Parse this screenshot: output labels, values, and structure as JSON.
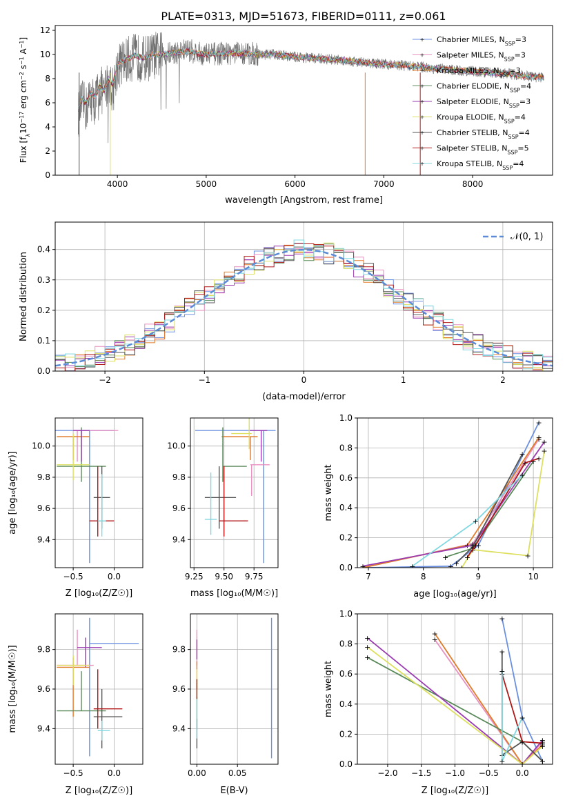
{
  "title": "PLATE=0313, MJD=51673, FIBERID=0111, z=0.061",
  "model_colors": [
    "#6a8fe0",
    "#e98fc0",
    "#e07b2a",
    "#5a8a5a",
    "#9a3ab0",
    "#dde060",
    "#555555",
    "#b01818",
    "#80d8e0"
  ],
  "model_names": [
    {
      "pre": "Chabrier MILES, N",
      "sub": "SSP",
      "post": "=3"
    },
    {
      "pre": "Salpeter MILES, N",
      "sub": "SSP",
      "post": "=3"
    },
    {
      "pre": "Kroupa MILES, N",
      "sub": "SSP",
      "post": "=3"
    },
    {
      "pre": "Chabrier ELODIE, N",
      "sub": "SSP",
      "post": "=4"
    },
    {
      "pre": "Salpeter ELODIE, N",
      "sub": "SSP",
      "post": "=3"
    },
    {
      "pre": "Kroupa ELODIE, N",
      "sub": "SSP",
      "post": "=4"
    },
    {
      "pre": "Chabrier STELIB, N",
      "sub": "SSP",
      "post": "=4"
    },
    {
      "pre": "Salpeter STELIB, N",
      "sub": "SSP",
      "post": "=5"
    },
    {
      "pre": "Kroupa STELIB, N",
      "sub": "SSP",
      "post": "=4"
    }
  ],
  "chart_data": [
    {
      "id": "spectrum",
      "type": "line",
      "xlabel": "wavelength [Angstrom, rest frame]",
      "ylabel_pre": "Flux [f",
      "ylabel_sub": "λ",
      "ylabel_mid": "10",
      "ylabel_sup1": "−17",
      "ylabel_post": " erg cm",
      "ylabel_sup2": "−2",
      "ylabel_mid2": " s",
      "ylabel_sup3": "−1",
      "ylabel_mid3": " A",
      "ylabel_sup4": "−1",
      "ylabel_end": "]",
      "xlim": [
        3300,
        8900
      ],
      "ylim": [
        0,
        12.4
      ],
      "xticks": [
        4000,
        5000,
        6000,
        7000,
        8000
      ],
      "yticks": [
        0,
        2,
        4,
        6,
        8,
        10,
        12
      ],
      "data_x": [
        3560,
        3600,
        3650,
        3700,
        3750,
        3800,
        3850,
        3900,
        3950,
        4000,
        4100,
        4200,
        4300,
        4400,
        4500,
        4600,
        4700,
        4800,
        4900,
        5000,
        5200,
        5400,
        5600,
        5800,
        6000,
        6200,
        6400,
        6600,
        6800,
        7000,
        7200,
        7400,
        7600,
        7800,
        8000,
        8200,
        8400,
        8600,
        8800
      ],
      "data_y": [
        5.0,
        6.0,
        5.5,
        6.5,
        6.0,
        7.5,
        6.5,
        8.0,
        7.0,
        9.0,
        9.5,
        9.8,
        9.6,
        9.9,
        10.0,
        10.1,
        10.2,
        10.4,
        10.1,
        10.0,
        10.1,
        10.1,
        10.0,
        10.0,
        9.8,
        9.7,
        9.6,
        9.5,
        9.3,
        9.2,
        9.1,
        9.0,
        8.8,
        8.7,
        8.6,
        8.5,
        8.4,
        8.2,
        8.1
      ],
      "model_y": [
        5.5,
        6.3,
        6.0,
        6.8,
        6.5,
        7.4,
        7.0,
        8.0,
        7.5,
        9.2,
        9.6,
        9.9,
        9.7,
        10.0,
        10.0,
        10.1,
        10.2,
        10.3,
        10.1,
        10.0,
        10.1,
        10.1,
        10.0,
        10.0,
        9.8,
        9.7,
        9.6,
        9.5,
        9.3,
        9.2,
        9.1,
        9.0,
        8.8,
        8.7,
        8.6,
        8.5,
        8.4,
        8.2,
        8.1
      ]
    },
    {
      "id": "residual-histogram",
      "type": "line",
      "xlabel": "(data-model)/error",
      "ylabel": "Normed distribution",
      "legend": "𝒩(0, 1)",
      "xlim": [
        -2.5,
        2.5
      ],
      "ylim": [
        0,
        0.49
      ],
      "xticks": [
        -2,
        -1,
        0,
        1,
        2
      ],
      "yticks": [
        0.0,
        0.1,
        0.2,
        0.3,
        0.4
      ],
      "bin_width": 0.1,
      "bin_start": -2.5
    },
    {
      "id": "age-vs-Z",
      "type": "scatter",
      "xlabel": "Z [log₁₀(Z/Z☉)]",
      "ylabel": "age  [log₁₀(age/yr)]",
      "xlim": [
        -0.72,
        0.35
      ],
      "ylim": [
        9.22,
        10.18
      ],
      "xticks": [
        -0.5,
        0.0
      ],
      "yticks": [
        9.4,
        9.6,
        9.8,
        10.0
      ],
      "points": [
        {
          "x": -0.3,
          "y": 10.1,
          "xerr": [
            0.6,
            0.3
          ],
          "yerr": [
            0.85,
            0.0
          ]
        },
        {
          "x": -0.45,
          "y": 10.1,
          "xerr": [
            0.05,
            0.5
          ],
          "yerr": [
            0.2,
            0.0
          ]
        },
        {
          "x": -0.5,
          "y": 10.06,
          "xerr": [
            0.2,
            0.2
          ],
          "yerr": [
            0.15,
            0.0
          ]
        },
        {
          "x": -0.4,
          "y": 9.87,
          "xerr": [
            0.3,
            0.3
          ],
          "yerr": [
            0.1,
            0.25
          ]
        },
        {
          "x": -0.4,
          "y": 10.1,
          "xerr": [
            0.1,
            0.1
          ],
          "yerr": [
            0.2,
            0.0
          ]
        },
        {
          "x": -0.5,
          "y": 9.88,
          "xerr": [
            0.2,
            0.2
          ],
          "yerr": [
            0.1,
            0.2
          ]
        },
        {
          "x": -0.15,
          "y": 9.67,
          "xerr": [
            0.1,
            0.1
          ],
          "yerr": [
            0.2,
            0.2
          ]
        },
        {
          "x": -0.2,
          "y": 9.52,
          "xerr": [
            0.1,
            0.2
          ],
          "yerr": [
            0.1,
            0.35
          ]
        },
        {
          "x": -0.15,
          "y": 9.52,
          "xerr": [
            0.05,
            0.05
          ],
          "yerr": [
            0.1,
            0.3
          ]
        }
      ]
    },
    {
      "id": "age-vs-mass",
      "type": "scatter",
      "xlabel": "mass [log₁₀(M/M☉)]",
      "xlim": [
        9.22,
        9.95
      ],
      "ylim": [
        9.22,
        10.18
      ],
      "xticks": [
        9.25,
        9.5,
        9.75
      ],
      "yticks": [
        9.4,
        9.6,
        9.8,
        10.0
      ],
      "points": [
        {
          "x": 9.83,
          "y": 10.1,
          "xerr": [
            0.57,
            0.1
          ],
          "yerr": [
            0.85,
            0.0
          ]
        },
        {
          "x": 9.73,
          "y": 9.88,
          "xerr": [
            0.01,
            0.15
          ],
          "yerr": [
            0.2,
            0.0
          ]
        },
        {
          "x": 9.72,
          "y": 10.06,
          "xerr": [
            0.24,
            0.06
          ],
          "yerr": [
            0.15,
            0.0
          ]
        },
        {
          "x": 9.49,
          "y": 9.87,
          "xerr": [
            0.0,
            0.2
          ],
          "yerr": [
            0.1,
            0.25
          ]
        },
        {
          "x": 9.81,
          "y": 10.1,
          "xerr": [
            0.1,
            0.05
          ],
          "yerr": [
            0.2,
            0.0
          ]
        },
        {
          "x": 9.71,
          "y": 10.08,
          "xerr": [
            0.15,
            0.02
          ],
          "yerr": [
            0.1,
            0.2
          ]
        },
        {
          "x": 9.46,
          "y": 9.67,
          "xerr": [
            0.12,
            0.14
          ],
          "yerr": [
            0.2,
            0.2
          ]
        },
        {
          "x": 9.5,
          "y": 9.52,
          "xerr": [
            0.04,
            0.2
          ],
          "yerr": [
            0.1,
            0.35
          ]
        },
        {
          "x": 9.39,
          "y": 9.53,
          "xerr": [
            0.05,
            0.05
          ],
          "yerr": [
            0.1,
            0.3
          ]
        }
      ]
    },
    {
      "id": "weight-vs-age",
      "type": "line",
      "xlabel": "age  [log₁₀(age/yr)]",
      "ylabel": "mass weight",
      "xlim": [
        6.8,
        10.35
      ],
      "ylim": [
        0,
        1.0
      ],
      "xticks": [
        7,
        8,
        9,
        10
      ],
      "yticks": [
        0.0,
        0.2,
        0.4,
        0.6,
        0.8,
        1.0
      ],
      "series": [
        {
          "x": [
            7.0,
            8.5,
            9.0,
            10.1
          ],
          "y": [
            0.0,
            0.01,
            0.15,
            0.97
          ]
        },
        {
          "x": [
            6.9,
            8.9,
            10.1
          ],
          "y": [
            0.0,
            0.16,
            0.86
          ]
        },
        {
          "x": [
            6.9,
            8.8,
            10.1
          ],
          "y": [
            0.0,
            0.15,
            0.87
          ]
        },
        {
          "x": [
            8.4,
            8.9,
            10.0
          ],
          "y": [
            0.07,
            0.13,
            0.71
          ]
        },
        {
          "x": [
            6.9,
            8.9,
            10.2
          ],
          "y": [
            0.01,
            0.15,
            0.84
          ]
        },
        {
          "x": [
            8.7,
            8.9,
            9.9,
            10.2
          ],
          "y": [
            0.0,
            0.12,
            0.08,
            0.78
          ]
        },
        {
          "x": [
            8.6,
            8.9,
            9.8
          ],
          "y": [
            0.03,
            0.14,
            0.76
          ]
        },
        {
          "x": [
            8.8,
            8.95,
            9.85,
            10.1
          ],
          "y": [
            0.07,
            0.15,
            0.7,
            0.73
          ]
        },
        {
          "x": [
            7.8,
            8.95,
            9.8
          ],
          "y": [
            0.01,
            0.31,
            0.62
          ]
        }
      ]
    },
    {
      "id": "mass-vs-Z",
      "type": "scatter",
      "xlabel": "Z [log₁₀(Z/Z☉)]",
      "ylabel": "mass [log₁₀(M/M☉)]",
      "xlim": [
        -0.72,
        0.35
      ],
      "ylim": [
        9.22,
        9.98
      ],
      "xticks": [
        -0.5,
        0.0
      ],
      "yticks": [
        9.4,
        9.6,
        9.8
      ],
      "points": [
        {
          "x": -0.3,
          "y": 9.83,
          "xerr": [
            0.0,
            0.6
          ],
          "yerr": [
            0.57,
            0.13
          ]
        },
        {
          "x": -0.45,
          "y": 9.72,
          "xerr": [
            0.25,
            0.2
          ],
          "yerr": [
            0.0,
            0.18
          ]
        },
        {
          "x": -0.5,
          "y": 9.71,
          "xerr": [
            0.2,
            0.2
          ],
          "yerr": [
            0.25,
            0.05
          ]
        },
        {
          "x": -0.4,
          "y": 9.49,
          "xerr": [
            0.3,
            0.3
          ],
          "yerr": [
            0.0,
            0.2
          ]
        },
        {
          "x": -0.35,
          "y": 9.81,
          "xerr": [
            0.1,
            0.2
          ],
          "yerr": [
            0.1,
            0.05
          ]
        },
        {
          "x": -0.5,
          "y": 9.72,
          "xerr": [
            0.2,
            0.2
          ],
          "yerr": [
            0.1,
            0.05
          ]
        },
        {
          "x": -0.15,
          "y": 9.46,
          "xerr": [
            0.1,
            0.25
          ],
          "yerr": [
            0.16,
            0.14
          ]
        },
        {
          "x": -0.2,
          "y": 9.5,
          "xerr": [
            0.05,
            0.3
          ],
          "yerr": [
            0.1,
            0.2
          ]
        },
        {
          "x": -0.15,
          "y": 9.39,
          "xerr": [
            0.05,
            0.1
          ],
          "yerr": [
            0.05,
            0.05
          ]
        }
      ]
    },
    {
      "id": "mass-vs-EBV",
      "type": "scatter",
      "xlabel": "E(B-V)",
      "xlim": [
        -0.008,
        0.1
      ],
      "ylim": [
        9.22,
        9.98
      ],
      "xticks": [
        0.0,
        0.05
      ],
      "yticks": [
        9.4,
        9.6,
        9.8
      ],
      "points": [
        {
          "x": 0.092,
          "y": 9.6,
          "xerr": [
            0,
            0
          ],
          "yerr": [
            0.35,
            0.36
          ]
        },
        {
          "x": 0.0,
          "y": 9.76,
          "xerr": [
            0,
            0
          ],
          "yerr": [
            0.04,
            0.14
          ]
        },
        {
          "x": 0.0,
          "y": 9.7,
          "xerr": [
            0,
            0
          ],
          "yerr": [
            0.1,
            0.04
          ]
        },
        {
          "x": 0.0,
          "y": 9.5,
          "xerr": [
            0,
            0
          ],
          "yerr": [
            0.1,
            0.06
          ]
        },
        {
          "x": 0.0,
          "y": 9.8,
          "xerr": [
            0,
            0
          ],
          "yerr": [
            0.05,
            0.05
          ]
        },
        {
          "x": 0.0,
          "y": 9.65,
          "xerr": [
            0,
            0
          ],
          "yerr": [
            0.1,
            0.05
          ]
        },
        {
          "x": 0.0,
          "y": 9.4,
          "xerr": [
            0,
            0
          ],
          "yerr": [
            0.1,
            0.05
          ]
        },
        {
          "x": 0.0,
          "y": 9.6,
          "xerr": [
            0,
            0
          ],
          "yerr": [
            0.05,
            0.05
          ]
        },
        {
          "x": 0.0,
          "y": 9.45,
          "xerr": [
            0,
            0
          ],
          "yerr": [
            0.1,
            0.1
          ]
        }
      ]
    },
    {
      "id": "weight-vs-Z",
      "type": "line",
      "xlabel": "Z [log₁₀(Z/Z☉)]",
      "ylabel": "mass weight",
      "xlim": [
        -2.45,
        0.45
      ],
      "ylim": [
        0,
        1.0
      ],
      "xticks": [
        -2.0,
        -1.5,
        -1.0,
        -0.5,
        0.0
      ],
      "yticks": [
        0.0,
        0.2,
        0.4,
        0.6,
        0.8,
        1.0
      ],
      "series": [
        {
          "x": [
            -0.3,
            0.0,
            0.3
          ],
          "y": [
            0.97,
            0.31,
            0.02
          ]
        },
        {
          "x": [
            -1.3,
            0.0,
            0.3
          ],
          "y": [
            0.83,
            0.0,
            0.15
          ]
        },
        {
          "x": [
            -1.3,
            0.0,
            0.3
          ],
          "y": [
            0.87,
            0.0,
            0.13
          ]
        },
        {
          "x": [
            -2.3,
            0.0,
            0.3
          ],
          "y": [
            0.71,
            0.15,
            0.02
          ]
        },
        {
          "x": [
            -2.3,
            0.0,
            0.3
          ],
          "y": [
            0.84,
            0.0,
            0.16
          ]
        },
        {
          "x": [
            -2.3,
            0.0,
            0.3
          ],
          "y": [
            0.78,
            0.0,
            0.12
          ]
        },
        {
          "x": [
            -0.3,
            -0.3,
            0.0,
            0.3
          ],
          "y": [
            0.75,
            0.06,
            0.15,
            0.02
          ]
        },
        {
          "x": [
            -0.3,
            0.0,
            0.3
          ],
          "y": [
            0.6,
            0.15,
            0.14
          ]
        },
        {
          "x": [
            -0.3,
            -0.3,
            0.0
          ],
          "y": [
            0.62,
            0.02,
            0.31
          ]
        }
      ]
    }
  ]
}
